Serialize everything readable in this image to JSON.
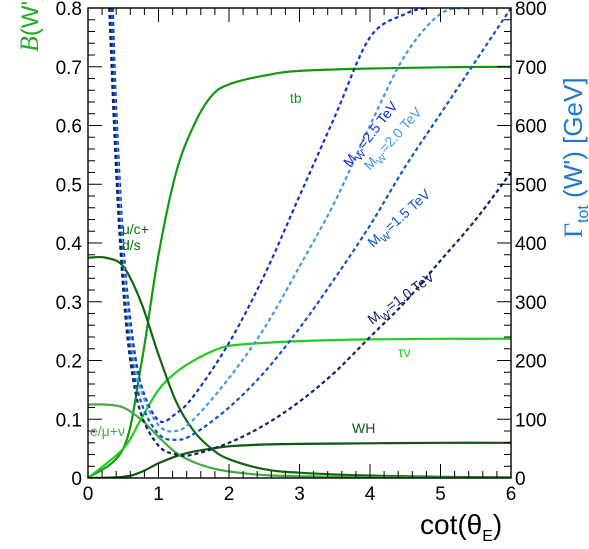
{
  "chart_data": {
    "type": "line",
    "xlabel": "cot(θE)",
    "ylabel_left": "B(W')",
    "ylabel_right": "Γtot (W') [GeV]",
    "xlim": [
      0,
      6
    ],
    "ylim_left": [
      0,
      0.8
    ],
    "ylim_right": [
      0,
      800
    ],
    "x_ticks": [
      "0",
      "1",
      "2",
      "3",
      "4",
      "5",
      "6"
    ],
    "y_ticks_left": [
      "0",
      "0.1",
      "0.2",
      "0.3",
      "0.4",
      "0.5",
      "0.6",
      "0.7",
      "0.8"
    ],
    "y_ticks_right": [
      "0",
      "100",
      "200",
      "300",
      "400",
      "500",
      "600",
      "700",
      "800"
    ],
    "colors": {
      "axis_left": "#22aa22",
      "axis_right": "#2277cc",
      "tb": "#119911",
      "tau_nu": "#22cc22",
      "WH": "#115511",
      "ud": "#116611",
      "lep": "#44aa44",
      "w25": "#1133cc",
      "w20": "#4499dd",
      "w15": "#1155bb",
      "w10": "#112266"
    },
    "series": [
      {
        "name": "tb",
        "axis": "left",
        "x": [
          0,
          0.5,
          0.75,
          1.0,
          1.25,
          1.5,
          1.75,
          2.0,
          2.5,
          3.0,
          4.0,
          5.0,
          6.0
        ],
        "y": [
          0,
          0.05,
          0.19,
          0.38,
          0.52,
          0.6,
          0.65,
          0.67,
          0.685,
          0.693,
          0.697,
          0.699,
          0.7
        ]
      },
      {
        "name": "τν",
        "axis": "left",
        "x": [
          0,
          0.5,
          0.75,
          1.0,
          1.25,
          1.5,
          1.75,
          2.0,
          2.5,
          3.0,
          4.0,
          5.0,
          6.0
        ],
        "y": [
          0,
          0.05,
          0.1,
          0.15,
          0.18,
          0.2,
          0.215,
          0.225,
          0.23,
          0.233,
          0.236,
          0.237,
          0.237
        ]
      },
      {
        "name": "WH",
        "axis": "left",
        "x": [
          0,
          0.5,
          0.75,
          1.0,
          1.25,
          1.5,
          1.75,
          2.0,
          2.5,
          3.0,
          4.0,
          5.0,
          6.0
        ],
        "y": [
          0,
          0.002,
          0.01,
          0.025,
          0.037,
          0.045,
          0.05,
          0.054,
          0.057,
          0.058,
          0.059,
          0.06,
          0.06
        ]
      },
      {
        "name": "u/c+ d/s",
        "axis": "left",
        "x": [
          0,
          0.25,
          0.5,
          0.75,
          1.0,
          1.25,
          1.5,
          1.75,
          2.0,
          2.5,
          3.0,
          4.0,
          5.0,
          6.0
        ],
        "y": [
          0.375,
          0.375,
          0.36,
          0.3,
          0.21,
          0.13,
          0.08,
          0.05,
          0.032,
          0.015,
          0.009,
          0.004,
          0.002,
          0.001
        ]
      },
      {
        "name": "e/μ+ν",
        "axis": "left",
        "x": [
          0,
          0.25,
          0.5,
          0.75,
          1.0,
          1.25,
          1.5,
          1.75,
          2.0,
          2.5,
          3.0,
          4.0,
          5.0,
          6.0
        ],
        "y": [
          0.125,
          0.125,
          0.12,
          0.1,
          0.07,
          0.043,
          0.027,
          0.017,
          0.011,
          0.005,
          0.003,
          0.0013,
          0.0007,
          0.0004
        ]
      },
      {
        "name": "MW'=2.5 TeV",
        "axis": "right",
        "x": [
          0.35,
          0.4,
          0.5,
          0.6,
          0.75,
          1.0,
          1.25,
          1.5,
          2.0,
          2.5,
          3.0,
          3.5,
          4.0,
          4.5,
          4.8
        ],
        "y": [
          800,
          630,
          400,
          270,
          160,
          98,
          110,
          140,
          230,
          345,
          480,
          615,
          750,
          790,
          800
        ]
      },
      {
        "name": "MW'=2.0 TeV",
        "axis": "right",
        "x": [
          0.33,
          0.4,
          0.5,
          0.6,
          0.75,
          1.0,
          1.25,
          1.5,
          2.0,
          2.5,
          3.0,
          3.5,
          4.0,
          4.5,
          5.0,
          5.4
        ],
        "y": [
          800,
          590,
          370,
          240,
          150,
          90,
          80,
          100,
          170,
          255,
          360,
          470,
          600,
          720,
          790,
          800
        ]
      },
      {
        "name": "MW'=1.5 TeV",
        "axis": "right",
        "x": [
          0.33,
          0.4,
          0.5,
          0.6,
          0.75,
          1.0,
          1.25,
          1.5,
          2.0,
          2.5,
          3.0,
          3.5,
          4.0,
          4.5,
          5.0,
          5.5,
          6.0
        ],
        "y": [
          800,
          560,
          340,
          220,
          130,
          75,
          65,
          75,
          120,
          180,
          255,
          340,
          430,
          530,
          620,
          710,
          800
        ]
      },
      {
        "name": "MW'=1.0 TeV",
        "axis": "right",
        "x": [
          0.3,
          0.4,
          0.5,
          0.6,
          0.75,
          1.0,
          1.25,
          1.5,
          2.0,
          2.5,
          3.0,
          3.5,
          4.0,
          4.5,
          5.0,
          5.5,
          6.0
        ],
        "y": [
          800,
          520,
          320,
          200,
          110,
          55,
          40,
          40,
          60,
          90,
          130,
          180,
          240,
          300,
          370,
          440,
          520
        ]
      }
    ],
    "labels": {
      "tb": "tb",
      "tau_nu": "τν",
      "wh": "WH",
      "ud_line1": "u/c+",
      "ud_line2": "d/s",
      "lep": "e/μ+ν",
      "w25": "M",
      "w25_sub": "W'",
      "w25_rest": "=2.5 TeV",
      "w20_sub": "W'",
      "w20_rest": "=2.0 TeV",
      "w15_sub": "W'",
      "w15_rest": "=1.5 TeV",
      "w10_sub": "W'",
      "w10_rest": "=1.0 TeV"
    }
  }
}
